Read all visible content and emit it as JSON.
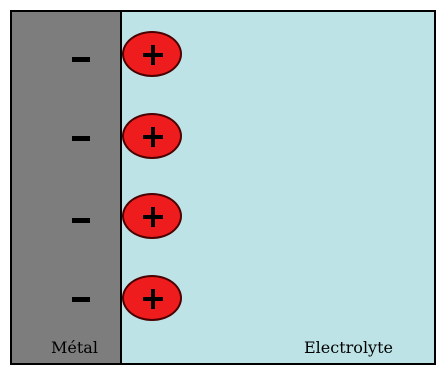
{
  "diagram": {
    "metal": {
      "label": "Métal",
      "color": "#7d7d7d",
      "charge_symbol": "-",
      "charge_count": 4
    },
    "electrolyte": {
      "label": "Electrolyte",
      "color": "#bde3e6"
    },
    "ions": {
      "charge_symbol": "+",
      "count": 4,
      "color": "#ee1c1c"
    }
  }
}
